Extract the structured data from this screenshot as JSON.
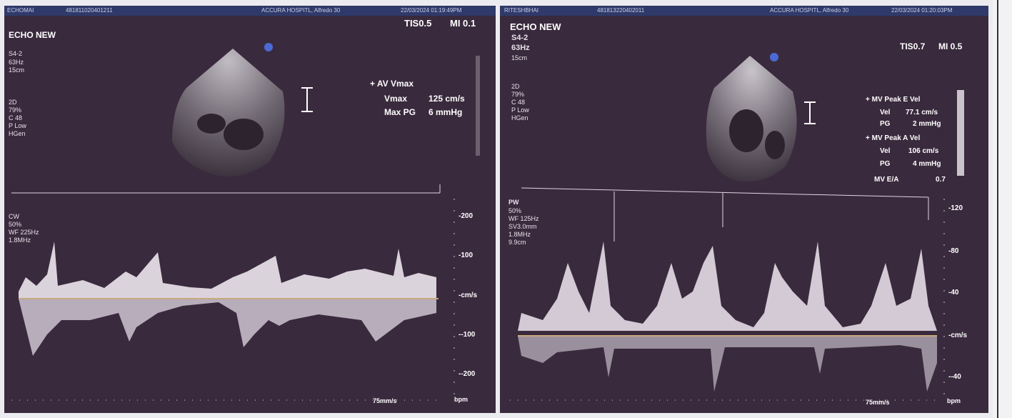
{
  "left_panel": {
    "patient_name": "ECHOMAI",
    "patient_id": "481811020401211",
    "hospital": "ACCURA HOSPITL, Alfredo 30",
    "datetime": "22/03/2024 01:19:49PM",
    "title": "ECHO NEW",
    "thermal": "TIS0.5",
    "mi": "MI 0.1",
    "probe": "S4-2",
    "freq": "63Hz",
    "depth": "15cm",
    "mode_lines": [
      "2D",
      "79%",
      "C 48",
      "P Low",
      "HGen"
    ],
    "doppler_mode": "CW",
    "doppler_params": [
      "50%",
      "WF 225Hz",
      "1.8MHz"
    ],
    "measurement_title": "+ AV Vmax",
    "measurements": [
      {
        "label": "Vmax",
        "value": "125 cm/s"
      },
      {
        "label": "Max PG",
        "value": "6 mmHg"
      }
    ],
    "scale_ticks": [
      "-200",
      "-100",
      "-cm/s",
      "--100",
      "--200"
    ],
    "sweep": "75mm/s",
    "bpm": "bpm"
  },
  "right_panel": {
    "patient_name": "RITESHBHAI",
    "patient_id": "481813220402011",
    "hospital": "ACCURA HOSPITL, Alfredo 30",
    "datetime": "22/03/2024 01:20:03PM",
    "title": "ECHO NEW",
    "thermal": "TIS0.7",
    "mi": "MI 0.5",
    "probe": "S4-2",
    "freq": "63Hz",
    "depth": "15cm",
    "mode_lines": [
      "2D",
      "79%",
      "C 48",
      "P Low",
      "HGen"
    ],
    "doppler_mode": "PW",
    "doppler_params": [
      "50%",
      "WF 125Hz",
      "SV3.0mm",
      "1.8MHz",
      "9.9cm"
    ],
    "measurement_groups": [
      {
        "title": "+ MV Peak E Vel",
        "rows": [
          {
            "label": "Vel",
            "value": "77.1 cm/s"
          },
          {
            "label": "PG",
            "value": "2 mmHg"
          }
        ]
      },
      {
        "title": "+ MV Peak A Vel",
        "rows": [
          {
            "label": "Vel",
            "value": "106 cm/s"
          },
          {
            "label": "PG",
            "value": "4 mmHg"
          }
        ]
      }
    ],
    "ratio_label": "MV E/A",
    "ratio_value": "0.7",
    "scale_ticks": [
      "-120",
      "-80",
      "-40",
      "-cm/s",
      "--40"
    ],
    "sweep": "75mm/s",
    "bpm": "bpm"
  },
  "colors": {
    "panel_bg": "#3a2a3d",
    "header_bar": "#2f3a6a",
    "trace": "#f4eef6",
    "baseline": "#c8a980"
  }
}
